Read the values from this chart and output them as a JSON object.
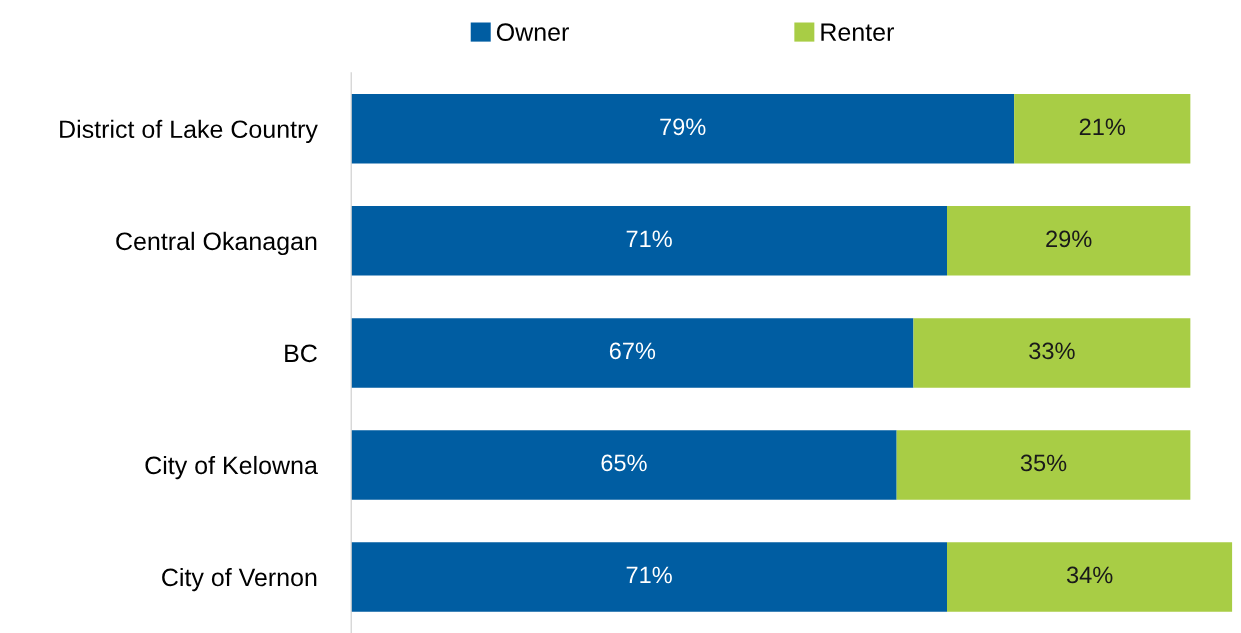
{
  "chart_data": {
    "type": "bar",
    "orientation": "horizontal",
    "stacked": true,
    "categories": [
      "District of Lake Country",
      "Central Okanagan",
      "BC",
      "City of Kelowna",
      "City of Vernon"
    ],
    "series": [
      {
        "name": "Owner",
        "color": "#005da2",
        "values": [
          79,
          71,
          67,
          65,
          71
        ],
        "value_labels": [
          "79%",
          "71%",
          "67%",
          "65%",
          "71%"
        ]
      },
      {
        "name": "Renter",
        "color": "#a8cd45",
        "values": [
          21,
          29,
          33,
          35,
          34
        ],
        "value_labels": [
          "21%",
          "29%",
          "33%",
          "35%",
          "34%"
        ]
      }
    ],
    "legend": "top",
    "grid": false,
    "tick_labels": "y"
  }
}
